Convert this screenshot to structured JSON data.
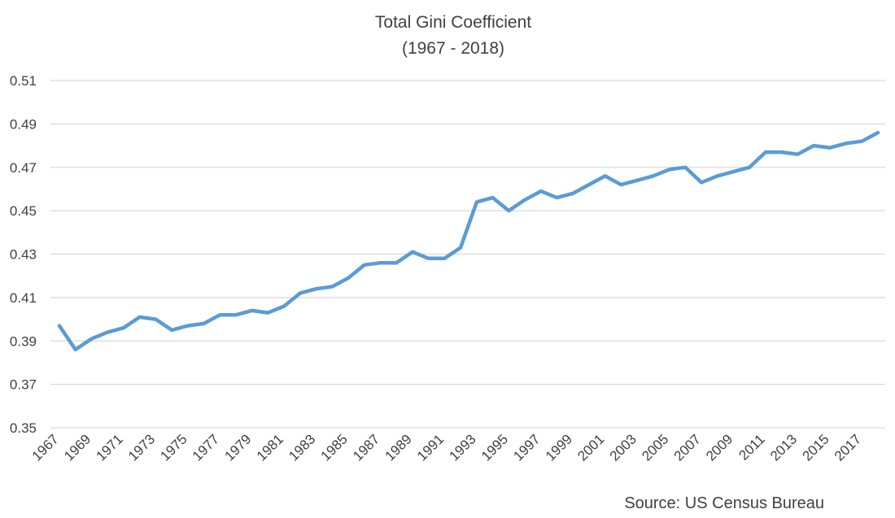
{
  "chart_data": {
    "type": "line",
    "title": "Total Gini Coefficient",
    "subtitle": "(1967 - 2018)",
    "xlabel": "",
    "ylabel": "",
    "source": "Source: US Census Bureau",
    "ylim": [
      0.35,
      0.51
    ],
    "yticks": [
      "0.35",
      "0.37",
      "0.39",
      "0.41",
      "0.43",
      "0.45",
      "0.47",
      "0.49",
      "0.51"
    ],
    "xticks": [
      "1967",
      "1969",
      "1971",
      "1973",
      "1975",
      "1977",
      "1979",
      "1981",
      "1983",
      "1985",
      "1987",
      "1989",
      "1991",
      "1993",
      "1995",
      "1997",
      "1999",
      "2001",
      "2003",
      "2005",
      "2007",
      "2009",
      "2011",
      "2013",
      "2015",
      "2017"
    ],
    "grid": true,
    "legend": "none",
    "series": [
      {
        "color": "#5b9bd5",
        "x": [
          1967,
          1968,
          1969,
          1970,
          1971,
          1972,
          1973,
          1974,
          1975,
          1976,
          1977,
          1978,
          1979,
          1980,
          1981,
          1982,
          1983,
          1984,
          1985,
          1986,
          1987,
          1988,
          1989,
          1990,
          1991,
          1992,
          1993,
          1994,
          1995,
          1996,
          1997,
          1998,
          1999,
          2000,
          2001,
          2002,
          2003,
          2004,
          2005,
          2006,
          2007,
          2008,
          2009,
          2010,
          2011,
          2012,
          2013,
          2014,
          2015,
          2016,
          2017,
          2018
        ],
        "values": [
          0.397,
          0.386,
          0.391,
          0.394,
          0.396,
          0.401,
          0.4,
          0.395,
          0.397,
          0.398,
          0.402,
          0.402,
          0.404,
          0.403,
          0.406,
          0.412,
          0.414,
          0.415,
          0.419,
          0.425,
          0.426,
          0.426,
          0.431,
          0.428,
          0.428,
          0.433,
          0.454,
          0.456,
          0.45,
          0.455,
          0.459,
          0.456,
          0.458,
          0.462,
          0.466,
          0.462,
          0.464,
          0.466,
          0.469,
          0.47,
          0.463,
          0.466,
          0.468,
          0.47,
          0.477,
          0.477,
          0.476,
          0.48,
          0.479,
          0.481,
          0.482,
          0.486
        ]
      }
    ]
  },
  "colors": {
    "line": "#5b9bd5",
    "grid": "#d9d9d9",
    "text": "#404040"
  }
}
